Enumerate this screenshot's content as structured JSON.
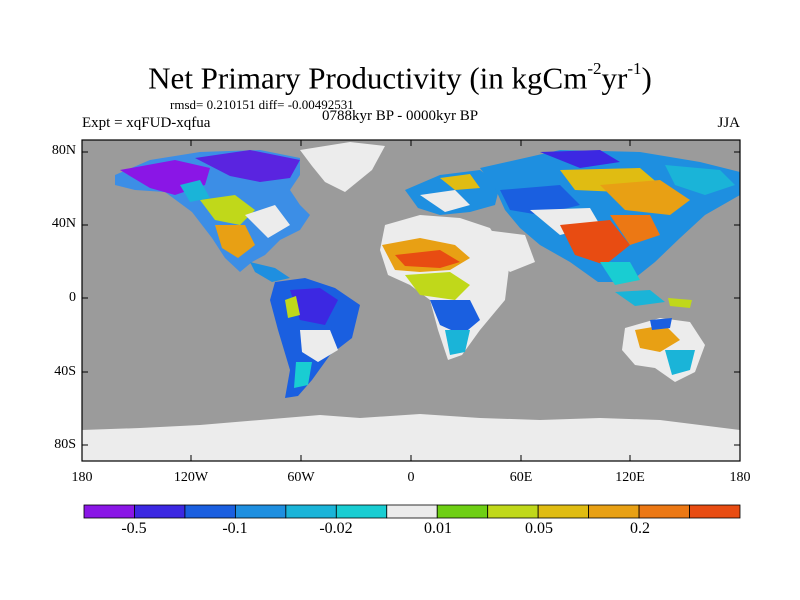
{
  "title": {
    "prefix": "Net Primary Productivity (in kgCm",
    "exp1": "-2",
    "mid": "yr",
    "exp2": "-1",
    "suffix": ")"
  },
  "stats": "rmsd= 0.210151  diff= -0.00492531",
  "period": "0788kyr BP - 0000kyr BP",
  "experiment": "Expt = xqFUD-xqfua",
  "season": "JJA",
  "lat_labels": [
    "80N",
    "40N",
    "0",
    "40S",
    "80S"
  ],
  "lon_labels": [
    "180",
    "120W",
    "60W",
    "0",
    "60E",
    "120E",
    "180"
  ],
  "colorbar": {
    "colors": [
      "#8a16e6",
      "#3c28e2",
      "#1a5fe0",
      "#1e8fe0",
      "#1ab4d8",
      "#19cdd2",
      "#ececec",
      "#6ecf14",
      "#c0d81a",
      "#e0bc12",
      "#e8a014",
      "#ec7814",
      "#e84c12"
    ],
    "labels": [
      "-0.5",
      "-0.1",
      "-0.02",
      "0.01",
      "0.05",
      "0.2"
    ]
  },
  "ocean_color": "#9b9b9b",
  "land_color": "#ececec"
}
